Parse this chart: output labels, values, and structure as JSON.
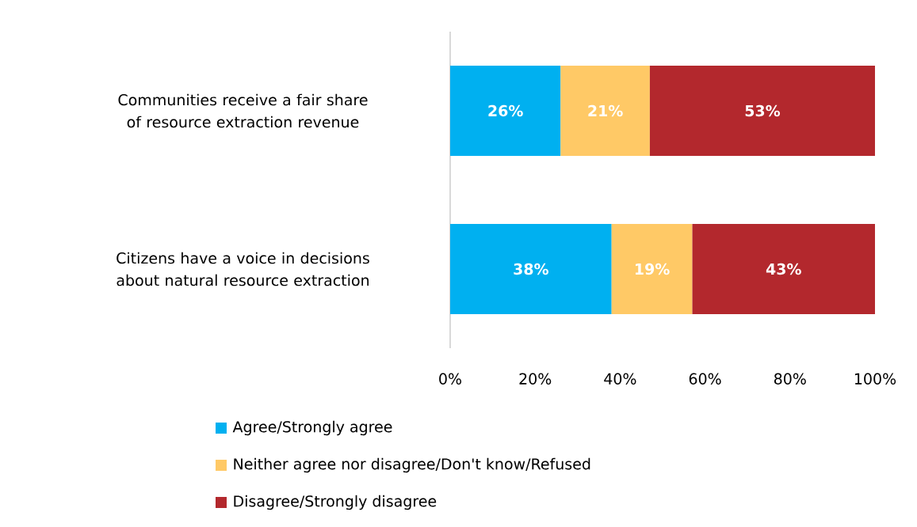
{
  "chart_data": {
    "type": "bar",
    "orientation": "horizontal",
    "stacked": true,
    "categories": [
      "Communities receive a fair share of resource extraction revenue",
      "Citizens have a voice in decisions about natural resource extraction"
    ],
    "series": [
      {
        "name": "Agree/Strongly agree",
        "color": "#00b0f0",
        "values": [
          26,
          38
        ],
        "value_labels": [
          "26%",
          "38%"
        ]
      },
      {
        "name": "Neither agree nor disagree/Don't know/Refused",
        "color": "#ffc966",
        "values": [
          21,
          19
        ],
        "value_labels": [
          "21%",
          "19%"
        ]
      },
      {
        "name": "Disagree/Strongly disagree",
        "color": "#b3282d",
        "values": [
          53,
          43
        ],
        "value_labels": [
          "53%",
          "43%"
        ]
      }
    ],
    "xlim": [
      0,
      100
    ],
    "xticks": [
      {
        "value": 0,
        "label": "0%"
      },
      {
        "value": 20,
        "label": "20%"
      },
      {
        "value": 40,
        "label": "40%"
      },
      {
        "value": 60,
        "label": "60%"
      },
      {
        "value": 80,
        "label": "80%"
      },
      {
        "value": 100,
        "label": "100%"
      }
    ],
    "legend": "bottom",
    "grid": false
  }
}
